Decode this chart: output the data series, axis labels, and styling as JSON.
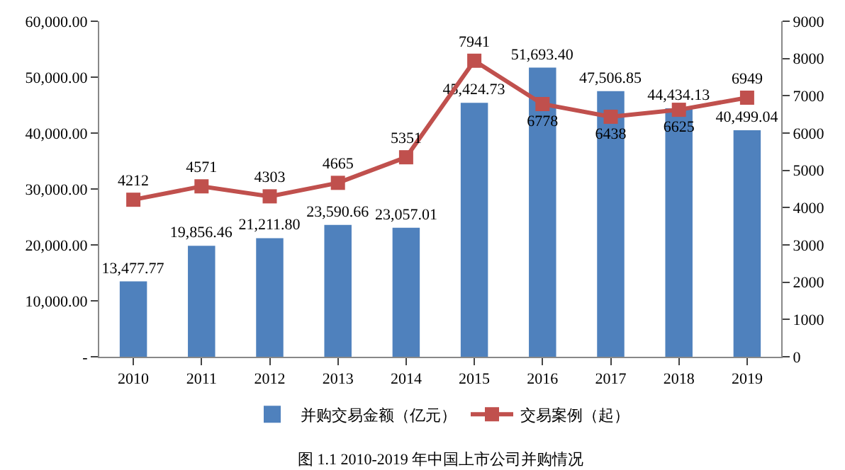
{
  "chart_data": {
    "type": "bar",
    "categories": [
      "2010",
      "2011",
      "2012",
      "2013",
      "2014",
      "2015",
      "2016",
      "2017",
      "2018",
      "2019"
    ],
    "series": [
      {
        "name": "并购交易金额（亿元）",
        "color": "#4f81bd",
        "values": [
          13477.77,
          19856.46,
          21211.8,
          23590.66,
          23057.01,
          45424.73,
          51693.4,
          47506.85,
          44434.13,
          40499.04
        ],
        "value_labels": [
          "13,477.77",
          "19,856.46",
          "21,211.80",
          "23,590.66",
          "23,057.01",
          "45,424.73",
          "51,693.40",
          "47,506.85",
          "44,434.13",
          "40,499.04"
        ]
      },
      {
        "name": "交易案例（起）",
        "type": "line",
        "axis": "y2",
        "color": "#c0504d",
        "marker": "square",
        "values": [
          4212,
          4571,
          4303,
          4665,
          5351,
          7941,
          6778,
          6438,
          6625,
          6949
        ],
        "value_labels": [
          "4212",
          "4571",
          "4303",
          "4665",
          "5351",
          "7941",
          "6778",
          "6438",
          "6625",
          "6949"
        ]
      }
    ],
    "ylim": [
      0,
      60000
    ],
    "yticks": [
      {
        "value": 0,
        "label": "-"
      },
      {
        "value": 10000,
        "label": "10,000.00"
      },
      {
        "value": 20000,
        "label": "20,000.00"
      },
      {
        "value": 30000,
        "label": "30,000.00"
      },
      {
        "value": 40000,
        "label": "40,000.00"
      },
      {
        "value": 50000,
        "label": "50,000.00"
      },
      {
        "value": 60000,
        "label": "60,000.00"
      }
    ],
    "y2lim": [
      0,
      9000
    ],
    "y2ticks": [
      0,
      1000,
      2000,
      3000,
      4000,
      5000,
      6000,
      7000,
      8000,
      9000
    ],
    "grid": false,
    "legend": "bottom",
    "annotations": [
      "图 1.1 2010-2019 年中国上市公司并购情况"
    ]
  }
}
